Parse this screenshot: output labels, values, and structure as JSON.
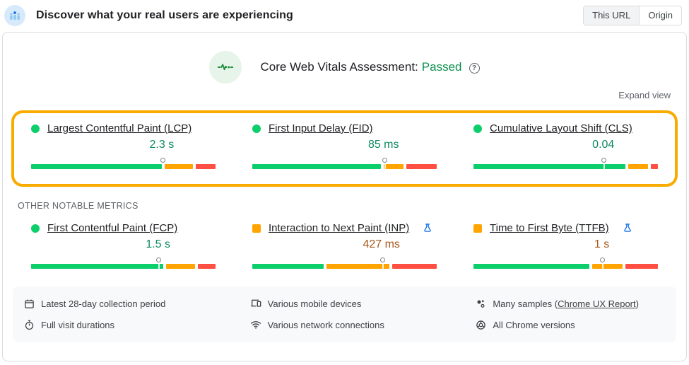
{
  "header": {
    "title": "Discover what your real users are experiencing",
    "toggle": {
      "this_url_label": "This URL",
      "origin_label": "Origin",
      "selected": "This URL"
    }
  },
  "assessment": {
    "title": "Core Web Vitals Assessment:",
    "status": "Passed",
    "status_color": "#0d904f",
    "help_glyph": "?",
    "expand_view_label": "Expand view"
  },
  "section_label": "OTHER NOTABLE METRICS",
  "colors": {
    "bar_good": "#0cce6b",
    "bar_needs_improvement": "#ffa400",
    "bar_poor": "#ff4e42",
    "highlight_border": "#f9ab00",
    "value_good_text": "#0d8a62",
    "value_ni_text": "#a8581c",
    "experiment_flask": "#1a73e8"
  },
  "core_metrics": [
    {
      "label": "Largest Contentful Paint (LCP)",
      "value": "2.3 s",
      "rating": "good",
      "indicator": "circle",
      "indicator_color": "#0cce6b",
      "value_color": "#0d8a62",
      "segments": {
        "good": 73,
        "needs_improvement": 16,
        "poor": 11
      },
      "marker_pct": 71.5
    },
    {
      "label": "First Input Delay (FID)",
      "value": "85 ms",
      "rating": "good",
      "indicator": "circle",
      "indicator_color": "#0cce6b",
      "value_color": "#0d8a62",
      "segments": {
        "good": 72,
        "needs_improvement": 11,
        "poor": 17
      },
      "marker_pct": 72
    },
    {
      "label": "Cumulative Layout Shift (CLS)",
      "value": "0.04",
      "rating": "good",
      "indicator": "circle",
      "indicator_color": "#0cce6b",
      "value_color": "#0d8a62",
      "segments": {
        "good": 85,
        "needs_improvement": 11,
        "poor": 4
      },
      "marker_pct": 71
    }
  ],
  "other_metrics": [
    {
      "label": "First Contentful Paint (FCP)",
      "value": "1.5 s",
      "rating": "good",
      "indicator": "circle",
      "indicator_color": "#0cce6b",
      "value_color": "#0d8a62",
      "experimental": false,
      "segments": {
        "good": 74,
        "needs_improvement": 16,
        "poor": 10
      },
      "marker_pct": 69.5
    },
    {
      "label": "Interaction to Next Paint (INP)",
      "value": "427 ms",
      "rating": "needs-improvement",
      "indicator": "square",
      "indicator_color": "#ffa400",
      "value_color": "#a8581c",
      "experimental": true,
      "segments": {
        "good": 40,
        "needs_improvement": 35,
        "poor": 25
      },
      "marker_pct": 71
    },
    {
      "label": "Time to First Byte (TTFB)",
      "value": "1 s",
      "rating": "needs-improvement",
      "indicator": "square",
      "indicator_color": "#ffa400",
      "value_color": "#a8581c",
      "experimental": true,
      "segments": {
        "good": 65,
        "needs_improvement": 17,
        "poor": 18
      },
      "marker_pct": 70
    }
  ],
  "footer": {
    "items": [
      {
        "icon": "calendar-icon",
        "text": "Latest 28-day collection period"
      },
      {
        "icon": "devices-icon",
        "text": "Various mobile devices"
      },
      {
        "icon": "samples-icon",
        "text_prefix": "Many samples (",
        "link": "Chrome UX Report",
        "text_suffix": ")"
      },
      {
        "icon": "stopwatch-icon",
        "text": "Full visit durations"
      },
      {
        "icon": "network-icon",
        "text": "Various network connections"
      },
      {
        "icon": "chrome-icon",
        "text": "All Chrome versions"
      }
    ]
  }
}
